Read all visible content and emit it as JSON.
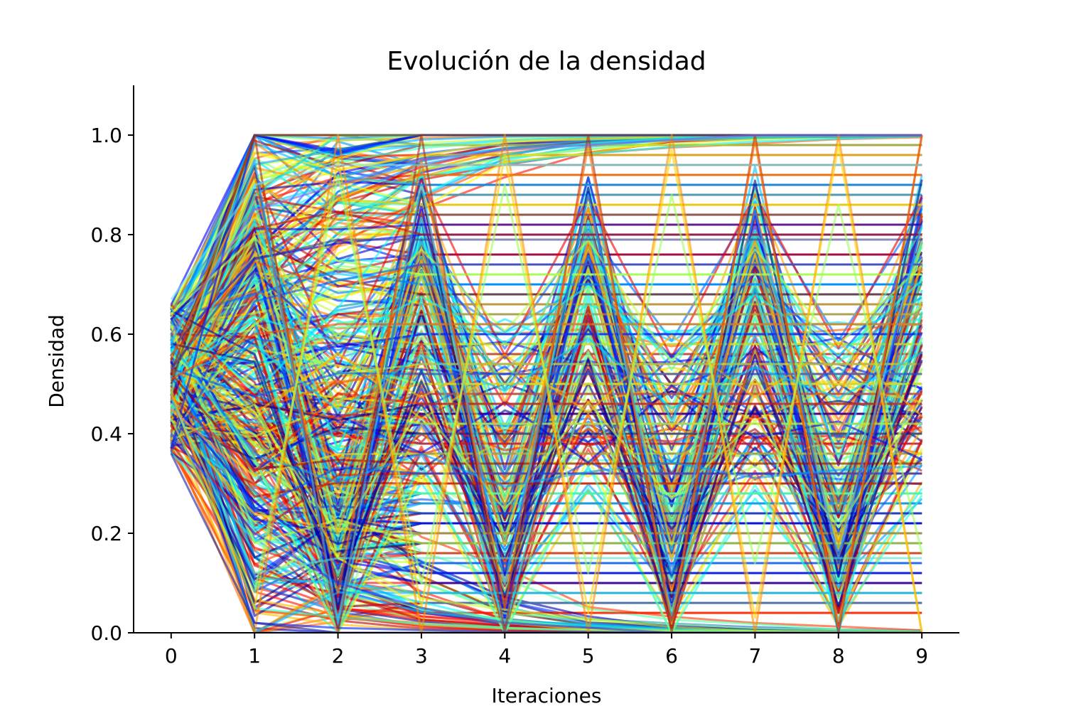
{
  "chart_data": {
    "type": "line",
    "title": "Evolución de la densidad",
    "xlabel": "Iteraciones",
    "ylabel": "Densidad",
    "x": [
      0,
      1,
      2,
      3,
      4,
      5,
      6,
      7,
      8,
      9
    ],
    "xlim": [
      -0.45,
      9.45
    ],
    "ylim": [
      0.0,
      1.1
    ],
    "x_ticks": [
      "0",
      "1",
      "2",
      "3",
      "4",
      "5",
      "6",
      "7",
      "8",
      "9"
    ],
    "y_ticks": [
      "0.0",
      "0.2",
      "0.4",
      "0.6",
      "0.8",
      "1.0"
    ],
    "y_tick_values": [
      0.0,
      0.2,
      0.4,
      0.6,
      0.8,
      1.0
    ],
    "grid": false,
    "colormap": "jet",
    "series_count": 500,
    "series": [
      {
        "values": [
          0.5,
          1.0,
          1.0,
          1.0,
          1.0,
          1.0,
          1.0,
          1.0,
          1.0,
          1.0
        ],
        "color": "#7f2704"
      },
      {
        "values": [
          0.52,
          1.0,
          0.0,
          1.0,
          0.0,
          1.0,
          0.0,
          1.0,
          0.0,
          1.0
        ],
        "color": "#b22c0c"
      },
      {
        "values": [
          0.49,
          0.0,
          1.0,
          0.0,
          1.0,
          0.0,
          1.0,
          0.0,
          1.0,
          0.0
        ],
        "color": "#ff8c00"
      },
      {
        "values": [
          0.55,
          0.92,
          0.08,
          0.95,
          0.05,
          0.98,
          0.02,
          0.99,
          0.01,
          1.0
        ],
        "color": "#ff6a00"
      },
      {
        "values": [
          0.48,
          0.05,
          0.95,
          0.05,
          0.96,
          0.04,
          0.97,
          0.03,
          0.98,
          0.0
        ],
        "color": "#ffd400"
      },
      {
        "values": [
          0.45,
          0.3,
          0.0,
          0.0,
          0.0,
          0.0,
          0.0,
          0.0,
          0.0,
          0.0
        ],
        "color": "#ff7f50"
      },
      {
        "values": [
          0.6,
          0.85,
          0.9,
          0.95,
          0.97,
          0.98,
          0.99,
          1.0,
          1.0,
          1.0
        ],
        "color": "#7b68ee"
      },
      {
        "values": [
          0.4,
          0.2,
          0.1,
          0.05,
          0.02,
          0.01,
          0.0,
          0.0,
          0.0,
          0.0
        ],
        "color": "#1e3cff"
      },
      {
        "values": [
          0.53,
          0.75,
          0.79,
          0.79,
          0.79,
          0.79,
          0.79,
          0.79,
          0.79,
          0.79
        ],
        "color": "#3c3c8c"
      },
      {
        "values": [
          0.47,
          0.12,
          0.15,
          0.15,
          0.15,
          0.15,
          0.15,
          0.15,
          0.15,
          0.15
        ],
        "color": "#57e0c8"
      },
      {
        "values": [
          0.51,
          0.6,
          0.62,
          0.62,
          0.62,
          0.62,
          0.62,
          0.62,
          0.62,
          0.62
        ],
        "color": "#ff4500"
      },
      {
        "values": [
          0.58,
          0.95,
          0.02,
          0.9,
          0.1,
          0.88,
          0.12,
          0.85,
          0.15,
          0.82
        ],
        "color": "#2ea8ff"
      },
      {
        "values": [
          0.43,
          0.08,
          0.92,
          0.1,
          0.9,
          0.12,
          0.88,
          0.14,
          0.86,
          0.16
        ],
        "color": "#9cff5a"
      },
      {
        "values": [
          0.67,
          0.9,
          0.94,
          0.94,
          0.94,
          0.94,
          0.94,
          0.94,
          0.94,
          0.94
        ],
        "color": "#6fe8ff"
      },
      {
        "values": [
          0.36,
          0.02,
          0.0,
          0.0,
          0.0,
          0.0,
          0.0,
          0.0,
          0.0,
          0.0
        ],
        "color": "#1a1aa0"
      }
    ]
  }
}
